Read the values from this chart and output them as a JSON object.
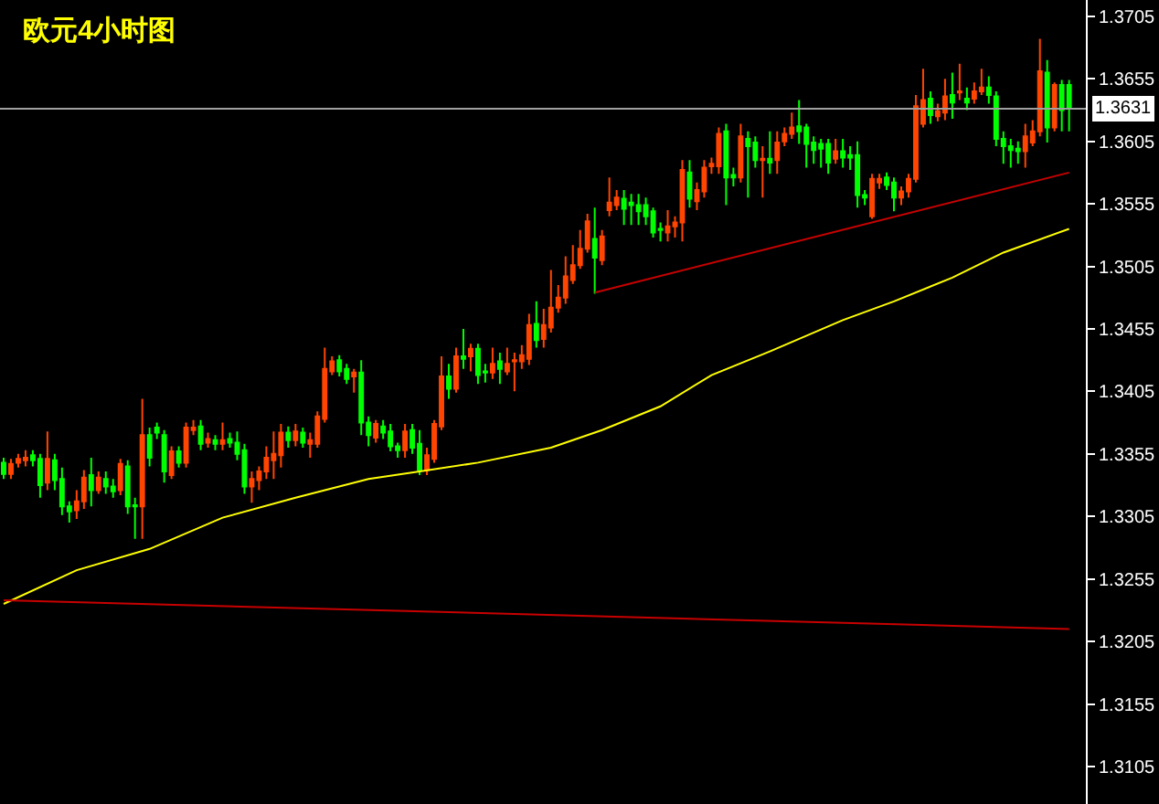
{
  "chart_data": {
    "type": "candlestick",
    "title": "欧元4小时图",
    "categories": [
      null,
      null,
      null,
      null,
      null,
      null,
      null,
      null,
      null,
      null,
      null,
      null,
      null,
      null,
      null,
      null,
      null,
      null,
      null,
      null,
      null,
      null,
      null,
      null,
      null,
      null,
      null,
      null,
      null,
      null,
      null,
      null,
      null,
      null,
      null,
      null,
      null,
      null,
      null,
      null,
      null,
      null,
      null,
      null,
      null,
      null,
      null,
      null,
      null,
      null,
      null,
      null,
      null,
      null,
      null,
      null,
      null,
      null,
      null,
      null,
      null,
      null,
      null,
      null,
      null,
      null,
      null,
      null,
      null,
      null,
      null,
      null,
      null,
      null,
      null,
      null,
      null,
      null,
      null,
      null,
      null,
      null,
      null,
      null,
      null,
      null,
      null,
      null,
      null,
      null,
      null,
      null,
      null,
      null,
      null,
      null,
      null,
      null,
      null,
      null,
      null,
      null,
      null,
      null,
      null,
      null,
      null,
      null,
      null,
      null,
      null,
      null,
      null,
      null,
      null,
      null,
      null,
      null,
      null,
      null,
      null,
      null,
      null,
      null,
      null,
      null,
      null,
      null,
      null,
      null,
      null,
      null,
      null,
      null,
      null,
      null,
      null,
      null,
      null,
      null,
      null,
      null,
      null,
      null,
      null,
      null,
      null
    ],
    "ohlc": [
      [
        1.3348,
        1.3352,
        1.3335,
        1.3339
      ],
      [
        1.3339,
        1.3351,
        1.3335,
        1.3347
      ],
      [
        1.3348,
        1.3355,
        1.3344,
        1.3351
      ],
      [
        1.335,
        1.3358,
        1.3345,
        1.3352
      ],
      [
        1.3354,
        1.3358,
        1.3345,
        1.335
      ],
      [
        1.3351,
        1.3355,
        1.332,
        1.333
      ],
      [
        1.3332,
        1.3373,
        1.3326,
        1.3351
      ],
      [
        1.335,
        1.3355,
        1.3326,
        1.3334
      ],
      [
        1.3335,
        1.3344,
        1.3306,
        1.3313
      ],
      [
        1.3313,
        1.3317,
        1.33,
        1.3309
      ],
      [
        1.331,
        1.3326,
        1.3303,
        1.3317
      ],
      [
        1.3317,
        1.3342,
        1.3311,
        1.3336
      ],
      [
        1.3338,
        1.3352,
        1.3313,
        1.3326
      ],
      [
        1.3326,
        1.3341,
        1.3323,
        1.3336
      ],
      [
        1.3335,
        1.3341,
        1.3323,
        1.3329
      ],
      [
        1.3329,
        1.3335,
        1.332,
        1.3325
      ],
      [
        1.3326,
        1.3351,
        1.3322,
        1.3347
      ],
      [
        1.3345,
        1.335,
        1.3307,
        1.3313
      ],
      [
        1.3314,
        1.332,
        1.3287,
        1.3313
      ],
      [
        1.3313,
        1.3399,
        1.3287,
        1.337
      ],
      [
        1.337,
        1.3376,
        1.3345,
        1.3352
      ],
      [
        1.3376,
        1.338,
        1.3367,
        1.3372
      ],
      [
        1.337,
        1.3374,
        1.3332,
        1.3341
      ],
      [
        1.3338,
        1.3361,
        1.3335,
        1.3357
      ],
      [
        1.3357,
        1.3361,
        1.3344,
        1.3348
      ],
      [
        1.3348,
        1.338,
        1.3344,
        1.3376
      ],
      [
        1.3374,
        1.3382,
        1.337,
        1.3376
      ],
      [
        1.3377,
        1.3382,
        1.3358,
        1.3363
      ],
      [
        1.3364,
        1.3372,
        1.336,
        1.3367
      ],
      [
        1.3366,
        1.337,
        1.3358,
        1.3363
      ],
      [
        1.3363,
        1.338,
        1.3358,
        1.3366
      ],
      [
        1.3367,
        1.3372,
        1.336,
        1.3364
      ],
      [
        1.3364,
        1.3373,
        1.335,
        1.3355
      ],
      [
        1.3358,
        1.3363,
        1.3323,
        1.3329
      ],
      [
        1.3329,
        1.3341,
        1.3316,
        1.3335
      ],
      [
        1.3334,
        1.3345,
        1.3326,
        1.3341
      ],
      [
        1.3341,
        1.3361,
        1.3335,
        1.3352
      ],
      [
        1.335,
        1.3373,
        1.3335,
        1.3355
      ],
      [
        1.3354,
        1.3379,
        1.3344,
        1.3372
      ],
      [
        1.3372,
        1.3377,
        1.336,
        1.3366
      ],
      [
        1.3366,
        1.3379,
        1.3361,
        1.3373
      ],
      [
        1.3372,
        1.3376,
        1.336,
        1.3364
      ],
      [
        1.3363,
        1.3372,
        1.3352,
        1.3366
      ],
      [
        1.3363,
        1.3389,
        1.336,
        1.3385
      ],
      [
        1.3383,
        1.344,
        1.338,
        1.3423
      ],
      [
        1.3421,
        1.3433,
        1.3418,
        1.3429
      ],
      [
        1.343,
        1.3434,
        1.3417,
        1.3421
      ],
      [
        1.3423,
        1.3427,
        1.3411,
        1.3415
      ],
      [
        1.3417,
        1.3423,
        1.3404,
        1.342
      ],
      [
        1.342,
        1.343,
        1.337,
        1.338
      ],
      [
        1.338,
        1.3385,
        1.3361,
        1.337
      ],
      [
        1.3368,
        1.3382,
        1.3364,
        1.3379
      ],
      [
        1.3377,
        1.3382,
        1.3367,
        1.3372
      ],
      [
        1.3373,
        1.3379,
        1.3357,
        1.3361
      ],
      [
        1.3361,
        1.3364,
        1.3352,
        1.3358
      ],
      [
        1.3358,
        1.3379,
        1.3352,
        1.3373
      ],
      [
        1.3374,
        1.3379,
        1.3355,
        1.336
      ],
      [
        1.3363,
        1.3374,
        1.3338,
        1.3342
      ],
      [
        1.3342,
        1.336,
        1.3338,
        1.3354
      ],
      [
        1.3351,
        1.3382,
        1.3348,
        1.3379
      ],
      [
        1.3377,
        1.3433,
        1.3374,
        1.3417
      ],
      [
        1.3417,
        1.3427,
        1.3399,
        1.3407
      ],
      [
        1.3407,
        1.344,
        1.3404,
        1.3433
      ],
      [
        1.3433,
        1.3455,
        1.3423,
        1.3431
      ],
      [
        1.3433,
        1.3443,
        1.3421,
        1.3439
      ],
      [
        1.3439,
        1.3443,
        1.3411,
        1.3418
      ],
      [
        1.3421,
        1.3427,
        1.3412,
        1.342
      ],
      [
        1.342,
        1.344,
        1.3415,
        1.3427
      ],
      [
        1.3429,
        1.3436,
        1.3411,
        1.3423
      ],
      [
        1.3421,
        1.344,
        1.3418,
        1.3427
      ],
      [
        1.3429,
        1.3436,
        1.3405,
        1.343
      ],
      [
        1.3429,
        1.3442,
        1.3423,
        1.3434
      ],
      [
        1.3431,
        1.3467,
        1.3426,
        1.3458
      ],
      [
        1.3459,
        1.3477,
        1.344,
        1.3446
      ],
      [
        1.3447,
        1.3471,
        1.344,
        1.3458
      ],
      [
        1.3456,
        1.3502,
        1.3452,
        1.3472
      ],
      [
        1.3472,
        1.349,
        1.3468,
        1.348
      ],
      [
        1.348,
        1.3513,
        1.3475,
        1.3497
      ],
      [
        1.3494,
        1.3522,
        1.3491,
        1.3506
      ],
      [
        1.3506,
        1.3534,
        1.3503,
        1.3519
      ],
      [
        1.3519,
        1.3547,
        1.3516,
        1.3541
      ],
      [
        1.3527,
        1.3552,
        1.3483,
        1.3512
      ],
      [
        1.351,
        1.3534,
        1.3506,
        1.3529
      ],
      [
        1.355,
        1.3576,
        1.3545,
        1.3556
      ],
      [
        1.3554,
        1.3566,
        1.355,
        1.356
      ],
      [
        1.3559,
        1.3566,
        1.3538,
        1.3551
      ],
      [
        1.3556,
        1.3563,
        1.3538,
        1.3554
      ],
      [
        1.3554,
        1.3563,
        1.3538,
        1.3549
      ],
      [
        1.3554,
        1.356,
        1.3538,
        1.3545
      ],
      [
        1.3549,
        1.3552,
        1.3528,
        1.3532
      ],
      [
        1.3535,
        1.354,
        1.3525,
        1.3534
      ],
      [
        1.3532,
        1.355,
        1.3525,
        1.3537
      ],
      [
        1.3537,
        1.3545,
        1.3528,
        1.354
      ],
      [
        1.354,
        1.359,
        1.3525,
        1.3582
      ],
      [
        1.358,
        1.359,
        1.3552,
        1.3559
      ],
      [
        1.3557,
        1.3572,
        1.355,
        1.3566
      ],
      [
        1.3565,
        1.359,
        1.356,
        1.3584
      ],
      [
        1.3585,
        1.3592,
        1.3579,
        1.3587
      ],
      [
        1.3585,
        1.3616,
        1.3579,
        1.3611
      ],
      [
        1.3613,
        1.3619,
        1.3554,
        1.3576
      ],
      [
        1.3578,
        1.3584,
        1.3569,
        1.3576
      ],
      [
        1.3576,
        1.3619,
        1.3572,
        1.3609
      ],
      [
        1.3607,
        1.3613,
        1.356,
        1.3601
      ],
      [
        1.3604,
        1.3609,
        1.3584,
        1.359
      ],
      [
        1.359,
        1.3601,
        1.356,
        1.3591
      ],
      [
        1.3591,
        1.3613,
        1.3579,
        1.3588
      ],
      [
        1.359,
        1.3613,
        1.3579,
        1.3604
      ],
      [
        1.3605,
        1.3616,
        1.3601,
        1.3611
      ],
      [
        1.3611,
        1.3628,
        1.3607,
        1.3616
      ],
      [
        1.3617,
        1.3638,
        1.3603,
        1.3613
      ],
      [
        1.3616,
        1.3619,
        1.3584,
        1.3603
      ],
      [
        1.3604,
        1.3609,
        1.3587,
        1.3598
      ],
      [
        1.3603,
        1.3607,
        1.3584,
        1.3599
      ],
      [
        1.3603,
        1.3607,
        1.3579,
        1.3588
      ],
      [
        1.3591,
        1.3607,
        1.3587,
        1.3597
      ],
      [
        1.3597,
        1.3607,
        1.3584,
        1.3592
      ],
      [
        1.3594,
        1.3601,
        1.3582,
        1.3592
      ],
      [
        1.3594,
        1.3605,
        1.3552,
        1.3562
      ],
      [
        1.3562,
        1.3566,
        1.3554,
        1.356
      ],
      [
        1.3545,
        1.3579,
        1.3543,
        1.3575
      ],
      [
        1.3572,
        1.3579,
        1.3567,
        1.3575
      ],
      [
        1.3576,
        1.358,
        1.3566,
        1.357
      ],
      [
        1.3572,
        1.3576,
        1.3549,
        1.356
      ],
      [
        1.356,
        1.3569,
        1.3554,
        1.3565
      ],
      [
        1.3565,
        1.3579,
        1.356,
        1.3575
      ],
      [
        1.3575,
        1.3642,
        1.3572,
        1.3633
      ],
      [
        1.3619,
        1.3663,
        1.3616,
        1.3638
      ],
      [
        1.3639,
        1.3645,
        1.3619,
        1.3626
      ],
      [
        1.3625,
        1.3635,
        1.3621,
        1.3629
      ],
      [
        1.3628,
        1.3655,
        1.3622,
        1.3641
      ],
      [
        1.3642,
        1.366,
        1.3623,
        1.3636
      ],
      [
        1.3644,
        1.3667,
        1.3638,
        1.3645
      ],
      [
        1.3639,
        1.3648,
        1.363,
        1.3636
      ],
      [
        1.3639,
        1.3652,
        1.3635,
        1.3645
      ],
      [
        1.3645,
        1.3663,
        1.3642,
        1.3648
      ],
      [
        1.3648,
        1.3657,
        1.3635,
        1.3642
      ],
      [
        1.3641,
        1.3645,
        1.3601,
        1.3607
      ],
      [
        1.3607,
        1.3613,
        1.3587,
        1.3601
      ],
      [
        1.3601,
        1.3607,
        1.3584,
        1.3598
      ],
      [
        1.3599,
        1.3605,
        1.3587,
        1.3597
      ],
      [
        1.3597,
        1.3619,
        1.3584,
        1.3609
      ],
      [
        1.3604,
        1.3622,
        1.3601,
        1.3613
      ],
      [
        1.3613,
        1.3687,
        1.3609,
        1.3661
      ],
      [
        1.366,
        1.367,
        1.3604,
        1.3616
      ],
      [
        1.3616,
        1.3652,
        1.3613,
        1.365
      ],
      [
        1.365,
        1.3654,
        1.3613,
        1.363
      ],
      [
        1.365,
        1.3654,
        1.3613,
        1.3631
      ]
    ],
    "colors": [
      "#00ff00",
      "#ff4500",
      "#ff4500",
      "#ff4500",
      "#00ff00",
      "#00ff00",
      "#ff4500",
      "#00ff00",
      "#00ff00",
      "#00ff00",
      "#ff4500",
      "#ff4500",
      "#00ff00",
      "#ff4500",
      "#00ff00",
      "#00ff00",
      "#ff4500",
      "#00ff00",
      "#00ff00",
      "#ff4500",
      "#00ff00",
      "#00ff00",
      "#00ff00",
      "#ff4500",
      "#00ff00",
      "#ff4500",
      "#ff4500",
      "#00ff00",
      "#ff4500",
      "#00ff00",
      "#ff4500",
      "#00ff00",
      "#00ff00",
      "#00ff00",
      "#ff4500",
      "#ff4500",
      "#ff4500",
      "#ff4500",
      "#ff4500",
      "#00ff00",
      "#ff4500",
      "#00ff00",
      "#ff4500",
      "#ff4500",
      "#ff4500",
      "#ff4500",
      "#00ff00",
      "#00ff00",
      "#ff4500",
      "#00ff00",
      "#00ff00",
      "#ff4500",
      "#00ff00",
      "#00ff00",
      "#00ff00",
      "#ff4500",
      "#00ff00",
      "#00ff00",
      "#ff4500",
      "#ff4500",
      "#ff4500",
      "#00ff00",
      "#ff4500",
      "#00ff00",
      "#ff4500",
      "#00ff00",
      "#00ff00",
      "#ff4500",
      "#00ff00",
      "#ff4500",
      "#ff4500",
      "#ff4500",
      "#ff4500",
      "#00ff00",
      "#ff4500",
      "#ff4500",
      "#ff4500",
      "#ff4500",
      "#ff4500",
      "#ff4500",
      "#ff4500",
      "#00ff00",
      "#ff4500",
      "#ff4500",
      "#ff4500",
      "#00ff00",
      "#00ff00",
      "#00ff00",
      "#00ff00",
      "#00ff00",
      "#00ff00",
      "#ff4500",
      "#ff4500",
      "#ff4500",
      "#00ff00",
      "#ff4500",
      "#ff4500",
      "#ff4500",
      "#ff4500",
      "#00ff00",
      "#00ff00",
      "#ff4500",
      "#00ff00",
      "#00ff00",
      "#ff4500",
      "#00ff00",
      "#ff4500",
      "#ff4500",
      "#ff4500",
      "#00ff00",
      "#00ff00",
      "#00ff00",
      "#00ff00",
      "#00ff00",
      "#ff4500",
      "#00ff00",
      "#00ff00",
      "#00ff00",
      "#00ff00",
      "#ff4500",
      "#ff4500",
      "#00ff00",
      "#00ff00",
      "#ff4500",
      "#ff4500",
      "#ff4500",
      "#ff4500",
      "#00ff00",
      "#ff4500",
      "#ff4500",
      "#00ff00",
      "#ff4500",
      "#00ff00",
      "#ff4500",
      "#ff4500",
      "#00ff00",
      "#00ff00",
      "#00ff00",
      "#00ff00",
      "#00ff00",
      "#ff4500",
      "#ff4500",
      "#ff4500",
      "#00ff00",
      "#ff4500",
      "#00ff00",
      "#00ff00"
    ],
    "series": [
      {
        "type": "line",
        "color": "#ffff00",
        "values": [
          1.3235,
          null,
          null,
          null,
          null,
          null,
          null,
          null,
          null,
          null,
          1.3262,
          null,
          null,
          null,
          null,
          null,
          null,
          null,
          null,
          null,
          1.3279,
          null,
          null,
          null,
          null,
          null,
          null,
          null,
          null,
          null,
          1.3304,
          null,
          null,
          null,
          null,
          null,
          null,
          null,
          null,
          null,
          1.332,
          null,
          null,
          null,
          null,
          null,
          null,
          null,
          null,
          null,
          1.3335,
          null,
          null,
          null,
          null,
          null,
          null,
          1.3341,
          null,
          null,
          null,
          null,
          null,
          null,
          null,
          1.3348,
          null,
          null,
          null,
          null,
          null,
          null,
          null,
          null,
          null,
          1.336,
          null,
          null,
          null,
          null,
          null,
          null,
          1.3374,
          null,
          null,
          null,
          null,
          null,
          null,
          null,
          1.3393,
          null,
          null,
          null,
          null,
          null,
          null,
          1.3418,
          null,
          null,
          null,
          null,
          null,
          null,
          null,
          1.3437,
          null,
          null,
          null,
          null,
          null,
          null,
          null,
          null,
          null,
          1.3462,
          null,
          null,
          null,
          null,
          null,
          null,
          1.3477,
          null,
          null,
          null,
          null,
          null,
          null,
          null,
          1.3496,
          null,
          null,
          null,
          null,
          null,
          null,
          1.3516,
          null,
          null,
          null,
          null,
          null,
          null,
          null,
          null,
          1.3535
        ]
      },
      {
        "type": "line",
        "color": "#c80000",
        "values": [
          1.3238,
          null,
          null,
          null,
          null,
          null,
          null,
          null,
          null,
          null,
          null,
          null,
          null,
          null,
          null,
          null,
          null,
          null,
          null,
          null,
          null,
          null,
          null,
          null,
          null,
          null,
          null,
          null,
          null,
          null,
          null,
          null,
          null,
          null,
          null,
          null,
          null,
          null,
          null,
          null,
          null,
          null,
          null,
          null,
          null,
          null,
          null,
          null,
          null,
          null,
          null,
          null,
          null,
          null,
          null,
          null,
          null,
          null,
          null,
          null,
          null,
          null,
          null,
          null,
          null,
          null,
          null,
          null,
          null,
          null,
          null,
          null,
          null,
          null,
          null,
          null,
          null,
          null,
          null,
          null,
          null,
          null,
          null,
          null,
          null,
          null,
          null,
          null,
          null,
          null,
          null,
          null,
          null,
          null,
          null,
          null,
          null,
          null,
          null,
          null,
          null,
          null,
          null,
          null,
          null,
          null,
          null,
          null,
          null,
          null,
          null,
          null,
          null,
          null,
          null,
          null,
          null,
          null,
          null,
          null,
          null,
          null,
          null,
          null,
          null,
          null,
          null,
          null,
          null,
          null,
          null,
          null,
          null,
          null,
          null,
          null,
          null,
          null,
          null,
          null,
          null,
          null,
          null,
          null,
          null,
          null,
          1.3215
        ]
      },
      {
        "type": "line",
        "color": "#c80000",
        "values": [
          null,
          null,
          null,
          null,
          null,
          null,
          null,
          null,
          null,
          null,
          null,
          null,
          null,
          null,
          null,
          null,
          null,
          null,
          null,
          null,
          null,
          null,
          null,
          null,
          null,
          null,
          null,
          null,
          null,
          null,
          null,
          null,
          null,
          null,
          null,
          null,
          null,
          null,
          null,
          null,
          null,
          null,
          null,
          null,
          null,
          null,
          null,
          null,
          null,
          null,
          null,
          null,
          null,
          null,
          null,
          null,
          null,
          null,
          null,
          null,
          null,
          null,
          null,
          null,
          null,
          null,
          null,
          null,
          null,
          null,
          null,
          null,
          null,
          null,
          null,
          null,
          null,
          null,
          null,
          null,
          null,
          1.3484,
          null,
          null,
          null,
          null,
          null,
          null,
          null,
          null,
          null,
          null,
          null,
          null,
          null,
          null,
          null,
          null,
          null,
          null,
          null,
          null,
          null,
          null,
          null,
          null,
          null,
          null,
          null,
          null,
          null,
          null,
          null,
          null,
          null,
          null,
          null,
          null,
          null,
          null,
          null,
          null,
          null,
          null,
          null,
          null,
          null,
          null,
          null,
          null,
          null,
          null,
          null,
          null,
          null,
          null,
          null,
          null,
          null,
          null,
          null,
          null,
          null,
          null,
          null,
          null,
          1.358
        ]
      }
    ],
    "ref_lines": [
      {
        "axis": "y",
        "value": 1.3631,
        "label": "1.3631",
        "color": "#a0a0a0"
      }
    ],
    "ylim": [
      1.3075,
      1.3718
    ],
    "yticks": [
      1.3105,
      1.3155,
      1.3205,
      1.3255,
      1.3305,
      1.3355,
      1.3405,
      1.3455,
      1.3505,
      1.3555,
      1.3605,
      1.3655,
      1.3705
    ],
    "tick_labels": "y",
    "grid": false
  }
}
